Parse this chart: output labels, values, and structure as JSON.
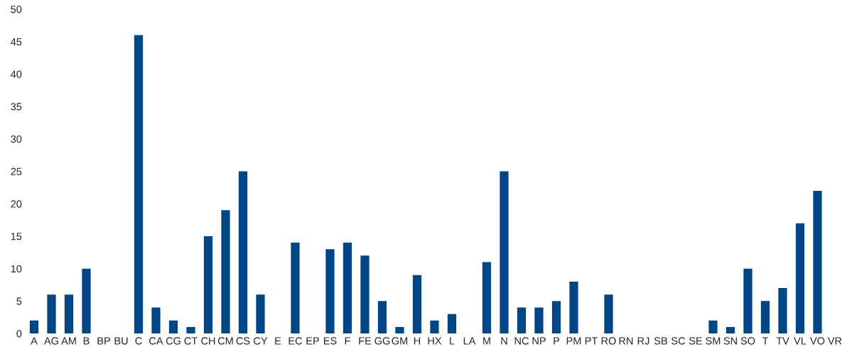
{
  "chart_data": {
    "type": "bar",
    "categories": [
      "A",
      "AG",
      "AM",
      "B",
      "BP",
      "BU",
      "C",
      "CA",
      "CG",
      "CT",
      "CH",
      "CM",
      "CS",
      "CY",
      "E",
      "EC",
      "EP",
      "ES",
      "F",
      "FE",
      "GG",
      "GM",
      "H",
      "HX",
      "L",
      "LA",
      "M",
      "N",
      "NC",
      "NP",
      "P",
      "PM",
      "PT",
      "RO",
      "RN",
      "RJ",
      "SB",
      "SC",
      "SE",
      "SM",
      "SN",
      "SO",
      "T",
      "TV",
      "VL",
      "VO",
      "VR"
    ],
    "values": [
      2,
      6,
      6,
      10,
      0,
      0,
      46,
      4,
      2,
      1,
      15,
      19,
      25,
      6,
      0,
      14,
      0,
      13,
      14,
      12,
      5,
      1,
      9,
      2,
      3,
      0,
      11,
      25,
      4,
      4,
      5,
      8,
      0,
      6,
      0,
      0,
      0,
      0,
      0,
      2,
      1,
      10,
      5,
      7,
      17,
      22,
      0
    ],
    "color": "#004586",
    "ylim": [
      0,
      50
    ],
    "yticks": [
      0,
      5,
      10,
      15,
      20,
      25,
      30,
      35,
      40,
      45,
      50
    ],
    "grid": false,
    "legend": false
  }
}
